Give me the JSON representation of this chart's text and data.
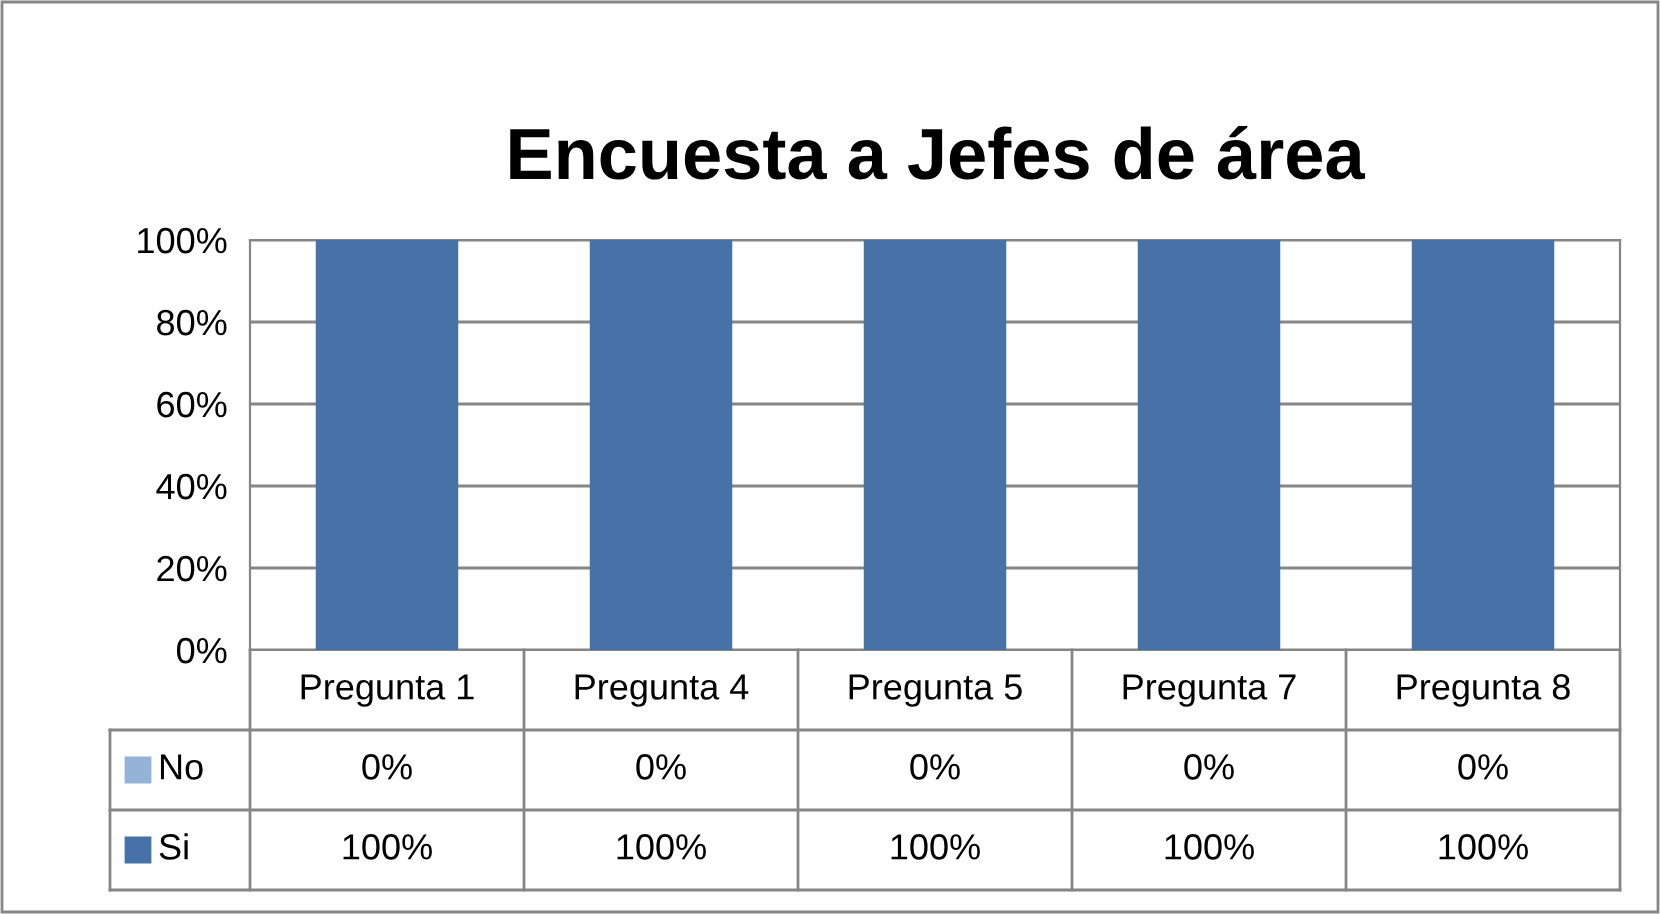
{
  "chart_data": {
    "type": "bar",
    "title": "Encuesta a Jefes de área",
    "categories": [
      "Pregunta 1",
      "Pregunta 4",
      "Pregunta 5",
      "Pregunta 7",
      "Pregunta 8"
    ],
    "series": [
      {
        "name": "No",
        "color": "#95b3d7",
        "values": [
          0,
          0,
          0,
          0,
          0
        ],
        "value_labels": [
          "0%",
          "0%",
          "0%",
          "0%",
          "0%"
        ]
      },
      {
        "name": "Si",
        "color": "#4672a8",
        "values": [
          100,
          100,
          100,
          100,
          100
        ],
        "value_labels": [
          "100%",
          "100%",
          "100%",
          "100%",
          "100%"
        ]
      }
    ],
    "ylim": [
      0,
      100
    ],
    "yticks": [
      {
        "value": 0,
        "label": "0%"
      },
      {
        "value": 20,
        "label": "20%"
      },
      {
        "value": 40,
        "label": "40%"
      },
      {
        "value": 60,
        "label": "60%"
      },
      {
        "value": 80,
        "label": "80%"
      },
      {
        "value": 100,
        "label": "100%"
      }
    ],
    "grid": "y",
    "legend": "left"
  }
}
